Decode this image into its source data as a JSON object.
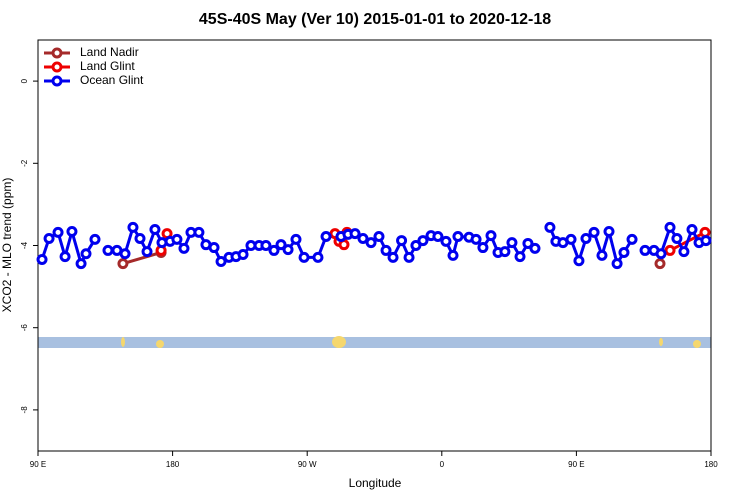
{
  "chart_data": {
    "type": "line",
    "title": "45S-40S May (Ver 10)   2015-01-01 to 2020-12-18",
    "x_label": "Longitude",
    "y_label": "XCO2 - MLO trend (ppm)",
    "xlim": [
      90,
      540
    ],
    "ylim": [
      -9,
      1
    ],
    "xticks": [
      {
        "value": 90,
        "label": "90 E"
      },
      {
        "value": 180,
        "label": "180"
      },
      {
        "value": 270,
        "label": "90 W"
      },
      {
        "value": 360,
        "label": "0"
      },
      {
        "value": 450,
        "label": "90 E"
      },
      {
        "value": 540,
        "label": "180"
      }
    ],
    "yticks": [
      0,
      -2,
      -4,
      -6,
      -8
    ],
    "legend": "top-left",
    "series": [
      {
        "name": "Land Nadir",
        "color": "#a52a2a",
        "x": [
          146.8,
          172.3,
          null,
          505.9
        ],
        "values": [
          -4.44,
          -4.17,
          null,
          -4.44
        ]
      },
      {
        "name": "Land Glint",
        "color": "#ee0000",
        "x": [
          172.3,
          176.3,
          null,
          288.6,
          291.3,
          294.6,
          296.6,
          null,
          512.6,
          536.0
        ],
        "values": [
          -4.12,
          -3.71,
          null,
          -3.71,
          -3.9,
          -3.98,
          -3.68,
          null,
          -4.12,
          -3.68
        ]
      },
      {
        "name": "Ocean Glint",
        "color": "#0000ee",
        "x": [
          92.7,
          97.4,
          103.4,
          108.1,
          112.7,
          118.8,
          122.1,
          128.1,
          null,
          136.8,
          142.8,
          148.2,
          153.5,
          158.2,
          162.9,
          168.2,
          172.9,
          178.3,
          182.9,
          187.6,
          192.3,
          197.6,
          202.3,
          207.7,
          212.4,
          217.7,
          222.4,
          227.1,
          232.4,
          237.8,
          242.4,
          247.8,
          252.5,
          257.2,
          262.5,
          267.9,
          277.2,
          282.6,
          292.6,
          297.3,
          302.0,
          307.3,
          312.7,
          318.0,
          322.7,
          327.4,
          333.1,
          338.1,
          342.7,
          347.4,
          352.8,
          357.4,
          362.8,
          367.5,
          370.8,
          378.2,
          382.9,
          387.5,
          392.9,
          397.6,
          402.2,
          406.9,
          412.3,
          417.6,
          422.3,
          null,
          432.3,
          436.3,
          441.0,
          446.4,
          451.7,
          456.4,
          461.8,
          467.1,
          471.8,
          477.2,
          481.8,
          487.2,
          null,
          495.9,
          501.9,
          506.6,
          512.6,
          517.2,
          521.9,
          527.3,
          532.0,
          536.6
        ],
        "values": [
          -4.34,
          -3.83,
          -3.68,
          -4.27,
          -3.66,
          -4.44,
          -4.2,
          -3.85,
          null,
          -4.12,
          -4.12,
          -4.2,
          -3.56,
          -3.83,
          -4.15,
          -3.61,
          -3.93,
          -3.9,
          -3.85,
          -4.07,
          -3.68,
          -3.68,
          -3.98,
          -4.05,
          -4.39,
          -4.29,
          -4.27,
          -4.22,
          -4.0,
          -4.0,
          -4.0,
          -4.12,
          -3.98,
          -4.1,
          -3.85,
          -4.29,
          -4.29,
          -3.78,
          -3.78,
          -3.73,
          -3.71,
          -3.83,
          -3.93,
          -3.78,
          -4.12,
          -4.29,
          -3.88,
          -4.29,
          -4.0,
          -3.88,
          -3.76,
          -3.78,
          -3.9,
          -4.24,
          -3.78,
          -3.8,
          -3.85,
          -4.05,
          -3.76,
          -4.17,
          -4.15,
          -3.93,
          -4.27,
          -3.95,
          -4.07,
          null,
          -3.56,
          -3.9,
          -3.93,
          -3.85,
          -4.37,
          -3.83,
          -3.68,
          -4.24,
          -3.66,
          -4.44,
          -4.17,
          -3.85,
          null,
          -4.12,
          -4.12,
          -4.2,
          -3.56,
          -3.83,
          -4.15,
          -3.61,
          -3.93,
          -3.88
        ]
      }
    ]
  }
}
